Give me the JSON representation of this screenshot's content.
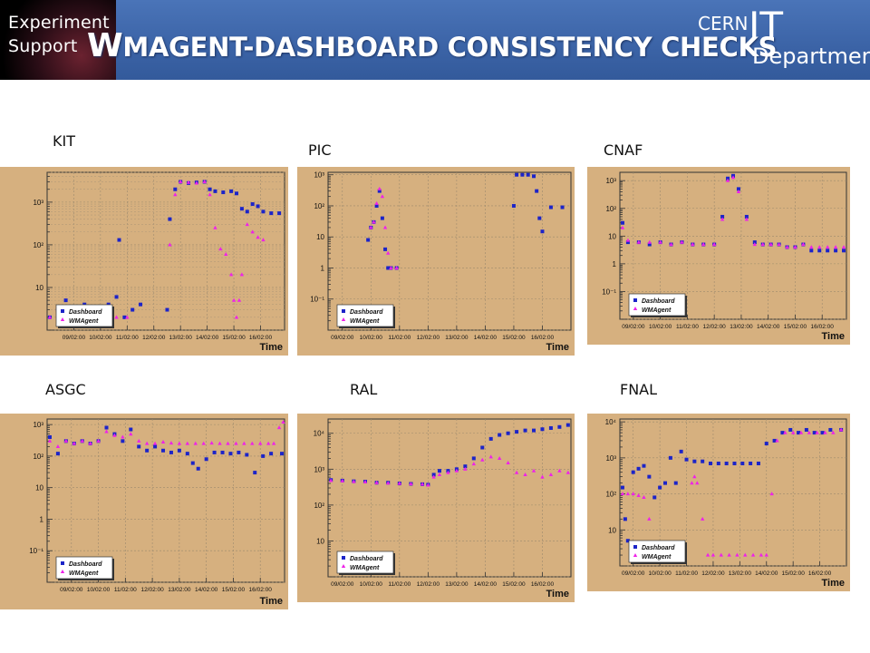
{
  "header": {
    "brand_line1": "Experiment",
    "brand_line2": "Support",
    "title_first": "W",
    "title_rest": "MAGENT-DASHBOARD CONSISTENCY CHECKS",
    "dept_cern": "CERN",
    "dept_it": "IT",
    "dept_department": "Department"
  },
  "colors": {
    "panel_bg": "#d6b07f",
    "dashboard": "#1c24c8",
    "wmagent": "#ee22e8",
    "header_blue": "#3b63a6"
  },
  "chart_data": [
    {
      "type": "scatter",
      "site": "KIT",
      "xlabel": "Time",
      "yscale": "log",
      "ylim": [
        1,
        5000
      ],
      "xlim": [
        8.0,
        16.9
      ],
      "xticks": [
        9,
        10,
        11,
        12,
        13,
        14,
        15,
        16
      ],
      "xtick_labels": [
        "09/02:00",
        "10/02:00",
        "11/02:00",
        "12/02:00",
        "13/02:00",
        "14/02:00",
        "15/02:00",
        "16/02:00"
      ],
      "yticks": [
        10,
        100,
        1000
      ],
      "ytick_labels": [
        "10",
        "10²",
        "10³"
      ],
      "grid": "dense",
      "legend": {
        "position": "bottom-left",
        "entries": [
          "Dashboard",
          "WMAgent"
        ]
      },
      "series": [
        {
          "name": "Dashboard",
          "x": [
            8.1,
            8.4,
            8.7,
            9.0,
            9.4,
            9.8,
            10.3,
            10.6,
            10.7,
            10.9,
            11.2,
            11.5,
            12.5,
            12.6,
            12.8,
            13.0,
            13.3,
            13.6,
            13.9,
            14.1,
            14.3,
            14.6,
            14.9,
            15.1,
            15.3,
            15.5,
            15.7,
            15.9,
            16.1,
            16.4,
            16.7
          ],
          "y": [
            2,
            3,
            5,
            3,
            4,
            3,
            4,
            6,
            130,
            2,
            3,
            4,
            3,
            400,
            2000,
            3000,
            2800,
            2900,
            3000,
            2000,
            1800,
            1700,
            1800,
            1600,
            700,
            600,
            900,
            800,
            600,
            550,
            550
          ]
        },
        {
          "name": "WMAgent",
          "x": [
            8.1,
            8.4,
            8.7,
            9.0,
            9.4,
            9.8,
            10.3,
            10.6,
            11.0,
            12.6,
            12.8,
            13.0,
            13.3,
            13.6,
            13.9,
            14.1,
            14.3,
            14.5,
            14.7,
            14.9,
            15.0,
            15.1,
            15.2,
            15.3,
            15.5,
            15.7,
            15.9,
            16.1
          ],
          "y": [
            2,
            2,
            2,
            2,
            2,
            2,
            2,
            2,
            2,
            100,
            1500,
            3000,
            2900,
            2800,
            3000,
            1500,
            250,
            80,
            60,
            20,
            5,
            2,
            5,
            20,
            300,
            200,
            150,
            130
          ]
        }
      ]
    },
    {
      "type": "scatter",
      "site": "PIC",
      "xlabel": "Time",
      "yscale": "log",
      "ylim": [
        0.01,
        1200
      ],
      "xlim": [
        8.5,
        17.0
      ],
      "xticks": [
        9,
        10,
        11,
        12,
        13,
        14,
        15,
        16
      ],
      "xtick_labels": [
        "09/02:00",
        "10/02:00",
        "11/02:00",
        "12/02:00",
        "13/02:00",
        "14/02:00",
        "15/02:00",
        "16/02:00"
      ],
      "yticks": [
        0.1,
        1,
        10,
        100,
        1000
      ],
      "ytick_labels": [
        "10⁻¹",
        "1",
        "10",
        "10²",
        "10³"
      ],
      "grid": "light",
      "legend": {
        "position": "bottom-left",
        "entries": [
          "Dashboard",
          "WMAgent"
        ]
      },
      "series": [
        {
          "name": "Dashboard",
          "x": [
            9.9,
            10.0,
            10.1,
            10.2,
            10.3,
            10.4,
            10.5,
            10.6,
            10.7,
            10.9,
            15.0,
            15.1,
            15.3,
            15.5,
            15.7,
            15.8,
            15.9,
            16.0,
            16.3,
            16.7
          ],
          "y": [
            8,
            20,
            30,
            100,
            300,
            40,
            4,
            1,
            1,
            1,
            100,
            1000,
            1000,
            1000,
            900,
            300,
            40,
            15,
            90,
            90
          ]
        },
        {
          "name": "WMAgent",
          "x": [
            10.0,
            10.1,
            10.2,
            10.3,
            10.4,
            10.5,
            10.6,
            10.7,
            10.9
          ],
          "y": [
            20,
            30,
            120,
            350,
            200,
            20,
            3,
            1,
            1
          ]
        }
      ]
    },
    {
      "type": "scatter",
      "site": "CNAF",
      "xlabel": "Time",
      "yscale": "log",
      "ylim": [
        0.01,
        2000
      ],
      "xlim": [
        8.5,
        16.9
      ],
      "xticks": [
        9,
        10,
        11,
        12,
        13,
        14,
        15,
        16
      ],
      "xtick_labels": [
        "09/02:00",
        "10/02:00",
        "11/02:00",
        "12/02:00",
        "13/02:00",
        "14/02:00",
        "15/02:00",
        "16/02:00"
      ],
      "yticks": [
        0.1,
        1,
        10,
        100,
        1000
      ],
      "ytick_labels": [
        "10⁻¹",
        "1",
        "10",
        "10²",
        "10³"
      ],
      "grid": "light",
      "legend": {
        "position": "bottom-left",
        "entries": [
          "Dashboard",
          "WMAgent"
        ]
      },
      "series": [
        {
          "name": "Dashboard",
          "x": [
            8.6,
            8.8,
            9.2,
            9.6,
            10.0,
            10.4,
            10.8,
            11.2,
            11.6,
            12.0,
            12.3,
            12.5,
            12.7,
            12.9,
            13.2,
            13.5,
            13.8,
            14.1,
            14.4,
            14.7,
            15.0,
            15.3,
            15.6,
            15.9,
            16.2,
            16.5,
            16.8
          ],
          "y": [
            30,
            6,
            6,
            5,
            6,
            5,
            6,
            5,
            5,
            5,
            50,
            1200,
            1500,
            500,
            50,
            6,
            5,
            5,
            5,
            4,
            4,
            5,
            3,
            3,
            3,
            3,
            3
          ]
        },
        {
          "name": "WMAgent",
          "x": [
            8.6,
            8.8,
            9.2,
            9.6,
            10.0,
            10.4,
            10.8,
            11.2,
            11.6,
            12.0,
            12.3,
            12.5,
            12.7,
            12.9,
            13.2,
            13.5,
            13.8,
            14.1,
            14.4,
            14.7,
            15.0,
            15.3,
            15.6,
            15.9,
            16.2,
            16.5,
            16.8
          ],
          "y": [
            20,
            7,
            6,
            6,
            6,
            5,
            6,
            5,
            5,
            5,
            40,
            1000,
            1300,
            400,
            40,
            5,
            5,
            5,
            5,
            4,
            4,
            5,
            4,
            4,
            4,
            4,
            4
          ]
        }
      ]
    },
    {
      "type": "scatter",
      "site": "ASGC",
      "xlabel": "Time",
      "yscale": "log",
      "ylim": [
        0.01,
        1500
      ],
      "xlim": [
        8.1,
        16.9
      ],
      "xticks": [
        9,
        10,
        11,
        12,
        13,
        14,
        15,
        16
      ],
      "xtick_labels": [
        "09/02:00",
        "10/02:00",
        "11/02:00",
        "12/02:00",
        "13/02:00",
        "14/02:00",
        "15/02:00",
        "16/02:00"
      ],
      "yticks": [
        0.1,
        1,
        10,
        100,
        1000
      ],
      "ytick_labels": [
        "10⁻¹",
        "1",
        "10",
        "10²",
        "10³"
      ],
      "grid": "light",
      "legend": {
        "position": "bottom-left",
        "entries": [
          "Dashboard",
          "WMAgent"
        ]
      },
      "series": [
        {
          "name": "Dashboard",
          "x": [
            8.2,
            8.5,
            8.8,
            9.1,
            9.4,
            9.7,
            10.0,
            10.3,
            10.6,
            10.9,
            11.2,
            11.5,
            11.8,
            12.1,
            12.4,
            12.7,
            13.0,
            13.3,
            13.5,
            13.7,
            14.0,
            14.3,
            14.6,
            14.9,
            15.2,
            15.5,
            15.8,
            16.1,
            16.4,
            16.8
          ],
          "y": [
            400,
            120,
            300,
            250,
            300,
            250,
            300,
            800,
            500,
            300,
            700,
            200,
            150,
            200,
            150,
            130,
            150,
            120,
            60,
            40,
            80,
            130,
            130,
            120,
            130,
            110,
            30,
            100,
            120,
            120
          ]
        },
        {
          "name": "WMAgent",
          "x": [
            8.2,
            8.5,
            8.8,
            9.1,
            9.4,
            9.7,
            10.0,
            10.3,
            10.6,
            10.9,
            11.2,
            11.5,
            11.8,
            12.1,
            12.4,
            12.7,
            13.0,
            13.3,
            13.6,
            13.9,
            14.2,
            14.5,
            14.8,
            15.1,
            15.4,
            15.7,
            16.0,
            16.3,
            16.5,
            16.7,
            16.85
          ],
          "y": [
            300,
            200,
            300,
            250,
            300,
            250,
            300,
            600,
            450,
            400,
            500,
            300,
            250,
            250,
            280,
            260,
            250,
            250,
            250,
            250,
            260,
            250,
            250,
            250,
            250,
            250,
            250,
            250,
            250,
            800,
            1200
          ]
        }
      ]
    },
    {
      "type": "scatter",
      "site": "RAL",
      "xlabel": "Time",
      "yscale": "log",
      "ylim": [
        1,
        25000
      ],
      "xlim": [
        8.5,
        17.0
      ],
      "xticks": [
        9,
        10,
        11,
        12,
        13,
        14,
        15,
        16
      ],
      "xtick_labels": [
        "09/02:00",
        "10/02:00",
        "11/02:00",
        "12/02:00",
        "13/02:00",
        "14/02:00",
        "15/02:00",
        "16/02:00"
      ],
      "yticks": [
        10,
        100,
        1000,
        10000
      ],
      "ytick_labels": [
        "10",
        "10²",
        "10³",
        "10⁴"
      ],
      "grid": "light",
      "legend": {
        "position": "bottom-left",
        "entries": [
          "Dashboard",
          "WMAgent"
        ]
      },
      "series": [
        {
          "name": "Dashboard",
          "x": [
            8.6,
            9.0,
            9.4,
            9.8,
            10.2,
            10.6,
            11.0,
            11.4,
            11.8,
            12.0,
            12.2,
            12.4,
            12.7,
            13.0,
            13.3,
            13.6,
            13.9,
            14.2,
            14.5,
            14.8,
            15.1,
            15.4,
            15.7,
            16.0,
            16.3,
            16.6,
            16.9
          ],
          "y": [
            500,
            480,
            460,
            450,
            420,
            420,
            400,
            390,
            380,
            370,
            700,
            900,
            900,
            1000,
            1200,
            2000,
            4000,
            7000,
            9000,
            10000,
            11000,
            12000,
            12000,
            13000,
            14000,
            15000,
            17000
          ]
        },
        {
          "name": "WMAgent",
          "x": [
            8.6,
            9.0,
            9.4,
            9.8,
            10.2,
            10.6,
            11.0,
            11.4,
            11.8,
            12.0,
            12.2,
            12.4,
            12.7,
            13.0,
            13.3,
            13.6,
            13.9,
            14.2,
            14.5,
            14.8,
            15.1,
            15.4,
            15.7,
            16.0,
            16.3,
            16.6,
            16.9
          ],
          "y": [
            480,
            470,
            450,
            440,
            420,
            410,
            400,
            390,
            380,
            360,
            600,
            700,
            800,
            900,
            1000,
            1400,
            1800,
            2200,
            2000,
            1500,
            800,
            700,
            900,
            600,
            700,
            900,
            800
          ]
        }
      ]
    },
    {
      "type": "scatter",
      "site": "FNAL",
      "xlabel": "Time",
      "yscale": "log",
      "ylim": [
        1,
        12000
      ],
      "xlim": [
        8.5,
        17.0
      ],
      "xticks": [
        9,
        10,
        11,
        12,
        13,
        14,
        15,
        16
      ],
      "xtick_labels": [
        "09/02:00",
        "10/02:00",
        "11/02:00",
        "12/02:00",
        "13/02:00",
        "14/02:00",
        "15/02:00",
        "16/02:00"
      ],
      "yticks": [
        10,
        100,
        1000,
        10000
      ],
      "ytick_labels": [
        "10",
        "10²",
        "10³",
        "10⁴"
      ],
      "grid": "light",
      "legend": {
        "position": "bottom-left",
        "entries": [
          "Dashboard",
          "WMAgent"
        ]
      },
      "series": [
        {
          "name": "Dashboard",
          "x": [
            8.6,
            8.7,
            8.8,
            9.0,
            9.2,
            9.4,
            9.6,
            9.8,
            10.0,
            10.2,
            10.4,
            10.6,
            10.8,
            11.0,
            11.3,
            11.6,
            11.9,
            12.2,
            12.5,
            12.8,
            13.1,
            13.4,
            13.7,
            14.0,
            14.3,
            14.6,
            14.9,
            15.2,
            15.5,
            15.8,
            16.1,
            16.4,
            16.8
          ],
          "y": [
            150,
            20,
            5,
            400,
            500,
            600,
            300,
            80,
            150,
            200,
            1000,
            200,
            1500,
            900,
            800,
            800,
            700,
            700,
            700,
            700,
            700,
            700,
            700,
            2500,
            3000,
            5000,
            6000,
            5000,
            6000,
            5000,
            5000,
            6000,
            6000
          ]
        },
        {
          "name": "WMAgent",
          "x": [
            8.6,
            8.8,
            9.0,
            9.2,
            9.4,
            9.6,
            9.8,
            10.0,
            10.2,
            10.4,
            10.6,
            10.9,
            11.2,
            11.3,
            11.4,
            11.6,
            11.8,
            12.0,
            12.3,
            12.6,
            12.9,
            13.2,
            13.5,
            13.8,
            14.0,
            14.2,
            14.4,
            14.7,
            15.0,
            15.3,
            15.6,
            15.9,
            16.2,
            16.5,
            16.8
          ],
          "y": [
            100,
            100,
            100,
            90,
            80,
            20,
            4,
            2,
            2,
            2,
            2,
            2,
            200,
            300,
            200,
            20,
            2,
            2,
            2,
            2,
            2,
            2,
            2,
            2,
            2,
            100,
            3000,
            5000,
            5000,
            5000,
            5000,
            5000,
            5000,
            5000,
            6000
          ]
        }
      ]
    }
  ]
}
